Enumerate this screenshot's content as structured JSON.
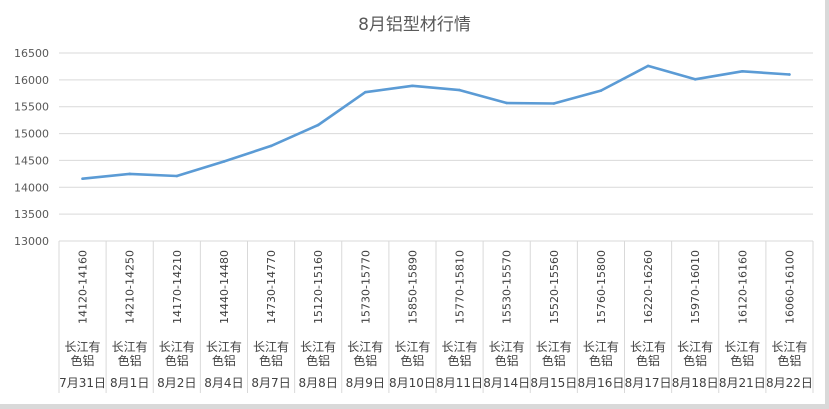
{
  "chart_data": {
    "type": "line",
    "title": "8月铝型材行情",
    "ylim": [
      13000,
      16500
    ],
    "y_ticks": [
      "13000",
      "13500",
      "14000",
      "14500",
      "15000",
      "15500",
      "16000",
      "16500"
    ],
    "grid": true,
    "legend": "none",
    "line_color": "#5b9bd5",
    "x_levels": {
      "price_range": [
        "14120-14160",
        "14210-14250",
        "14170-14210",
        "14440-14480",
        "14730-14770",
        "15120-15160",
        "15730-15770",
        "15850-15890",
        "15770-15810",
        "15530-15570",
        "15520-15560",
        "15760-15800",
        "16220-16260",
        "15970-16010",
        "16120-16160",
        "16060-16100"
      ],
      "source": [
        "长江有色铝",
        "长江有色铝",
        "长江有色铝",
        "长江有色铝",
        "长江有色铝",
        "长江有色铝",
        "长江有色铝",
        "长江有色铝",
        "长江有色铝",
        "长江有色铝",
        "长江有色铝",
        "长江有色铝",
        "长江有色铝",
        "长江有色铝",
        "长江有色铝",
        "长江有色铝"
      ],
      "date": [
        "7月31日",
        "8月1日",
        "8月2日",
        "8月4日",
        "8月7日",
        "8月8日",
        "8月9日",
        "8月10日",
        "8月11日",
        "8月14日",
        "8月15日",
        "8月16日",
        "8月17日",
        "8月18日",
        "8月21日",
        "8月22日"
      ]
    },
    "series": [
      {
        "values": [
          14160,
          14250,
          14210,
          14480,
          14770,
          15160,
          15770,
          15890,
          15810,
          15570,
          15560,
          15800,
          16260,
          16010,
          16160,
          16100
        ]
      }
    ]
  }
}
